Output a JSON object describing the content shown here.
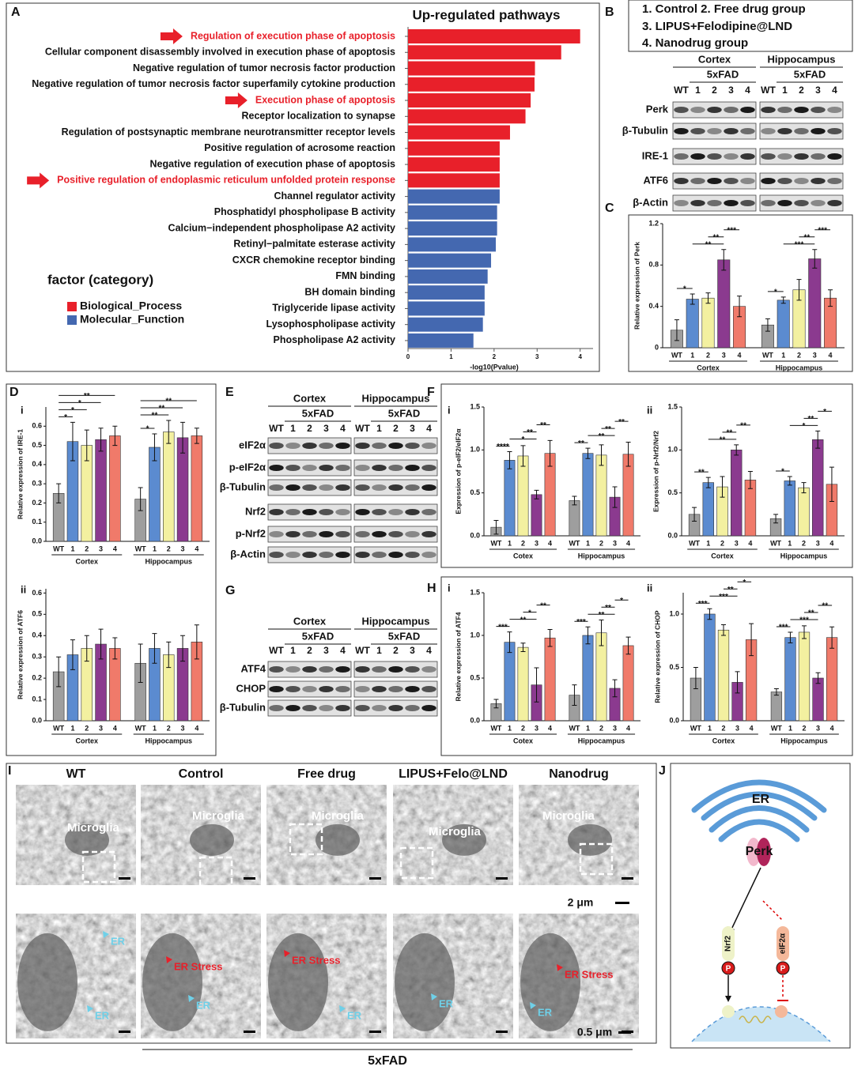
{
  "chart_data": [
    {
      "type": "barh",
      "title": "Up-regulated pathways",
      "xlabel": "-log10(Pvalue)",
      "legend_title": "factor (category)",
      "categories": [
        "Regulation of execution phase of apoptosis",
        "Cellular component disassembly involved in execution phase of apoptosis",
        "Negative regulation of tumor necrosis factor production",
        "Negative regulation of tumor necrosis factor superfamily cytokine production",
        "Execution phase of apoptosis",
        "Receptor localization to synapse",
        "Regulation of postsynaptic membrane neurotransmitter receptor levels",
        "Positive regulation of acrosome reaction",
        "Negative regulation of execution phase of apoptosis",
        "Positive regulation of endoplasmic reticulum unfolded protein response",
        "Channel regulator activity",
        "Phosphatidyl phospholipase B activity",
        "Calcium−independent phospholipase A2 activity",
        "Retinyl−palmitate esterase activity",
        "CXCR chemokine receptor binding",
        "FMN binding",
        "BH domain binding",
        "Triglyceride lipase activity",
        "Lysophospholipase activity",
        "Phospholipase A2 activity"
      ],
      "series": [
        {
          "name": "Biological_Process",
          "color": "#e8202a",
          "values": [
            4.0,
            3.56,
            2.95,
            2.94,
            2.85,
            2.73,
            2.37,
            2.13,
            2.13,
            2.13,
            null,
            null,
            null,
            null,
            null,
            null,
            null,
            null,
            null,
            null
          ]
        },
        {
          "name": "Molecular_Function",
          "color": "#4468b0",
          "values": [
            null,
            null,
            null,
            null,
            null,
            null,
            null,
            null,
            null,
            null,
            2.13,
            2.07,
            2.07,
            2.04,
            1.93,
            1.85,
            1.78,
            1.78,
            1.74,
            1.52
          ]
        }
      ],
      "highlighted": [
        0,
        4,
        9
      ],
      "highlight_color": "#e8202a",
      "xlim": [
        0,
        4.3
      ],
      "xticks": [
        0,
        1,
        2,
        3,
        4
      ]
    },
    {
      "type": "grouped_bar",
      "ylabel": "Relative expression of Perk",
      "categories": [
        "WT",
        "1",
        "2",
        "3",
        "4"
      ],
      "colors": [
        "#9e9e9e",
        "#5b8bd0",
        "#f3f0a0",
        "#8b3a8f",
        "#f07a6a"
      ],
      "ylim": [
        0,
        1.2
      ],
      "yticks": [
        0,
        0.4,
        0.8,
        1.2
      ],
      "groups": [
        {
          "name": "Cortex",
          "values": [
            0.17,
            0.47,
            0.48,
            0.85,
            0.4
          ],
          "errors": [
            0.1,
            0.05,
            0.05,
            0.1,
            0.1
          ]
        },
        {
          "name": "Hippocampus",
          "values": [
            0.22,
            0.46,
            0.56,
            0.86,
            0.48
          ],
          "errors": [
            0.06,
            0.03,
            0.1,
            0.09,
            0.08
          ]
        }
      ],
      "annotations": [
        {
          "text": "*",
          "group": 0,
          "from": 0,
          "to": 1
        },
        {
          "text": "**",
          "group": 0,
          "from": 1,
          "to": 3
        },
        {
          "text": "**",
          "group": 0,
          "from": 2,
          "to": 3
        },
        {
          "text": "***",
          "group": 0,
          "from": 3,
          "to": 4
        },
        {
          "text": "*",
          "group": 1,
          "from": 0,
          "to": 1
        },
        {
          "text": "***",
          "group": 1,
          "from": 1,
          "to": 3
        },
        {
          "text": "**",
          "group": 1,
          "from": 2,
          "to": 3
        },
        {
          "text": "***",
          "group": 1,
          "from": 3,
          "to": 4
        }
      ]
    },
    {
      "type": "grouped_bar",
      "label": "i",
      "ylabel": "Relative expression of IRE-1",
      "categories": [
        "WT",
        "1",
        "2",
        "3",
        "4"
      ],
      "colors": [
        "#9e9e9e",
        "#5b8bd0",
        "#f3f0a0",
        "#8b3a8f",
        "#f07a6a"
      ],
      "ylim": [
        0,
        0.7
      ],
      "yticks": [
        {
          "value": 0,
          "label": "0.0"
        },
        0.1,
        0.2,
        0.3,
        0.4,
        0.5,
        0.6
      ],
      "groups": [
        {
          "name": "Cortex",
          "values": [
            0.25,
            0.52,
            0.5,
            0.53,
            0.55
          ],
          "errors": [
            0.05,
            0.1,
            0.08,
            0.06,
            0.05
          ]
        },
        {
          "name": "Hippocampus",
          "values": [
            0.22,
            0.49,
            0.57,
            0.54,
            0.55
          ],
          "errors": [
            0.06,
            0.07,
            0.06,
            0.08,
            0.04
          ]
        }
      ],
      "annotations": [
        {
          "text": "*",
          "group": 0,
          "from": 0,
          "to": 1
        },
        {
          "text": "*",
          "group": 0,
          "from": 0,
          "to": 2
        },
        {
          "text": "*",
          "group": 0,
          "from": 0,
          "to": 3
        },
        {
          "text": "**",
          "group": 0,
          "from": 0,
          "to": 4
        },
        {
          "text": "*",
          "group": 1,
          "from": 0,
          "to": 1
        },
        {
          "text": "**",
          "group": 1,
          "from": 0,
          "to": 2
        },
        {
          "text": "**",
          "group": 1,
          "from": 0,
          "to": 3
        },
        {
          "text": "**",
          "group": 1,
          "from": 0,
          "to": 4
        }
      ]
    },
    {
      "type": "grouped_bar",
      "label": "ii",
      "ylabel": "Relative expression of ATF6",
      "categories": [
        "WT",
        "1",
        "2",
        "3",
        "4"
      ],
      "colors": [
        "#9e9e9e",
        "#5b8bd0",
        "#f3f0a0",
        "#8b3a8f",
        "#f07a6a"
      ],
      "ylim": [
        0,
        0.62
      ],
      "yticks": [
        {
          "value": 0,
          "label": "0.0"
        },
        0.1,
        0.2,
        0.3,
        0.4,
        0.5,
        0.6
      ],
      "groups": [
        {
          "name": "Cortex",
          "values": [
            0.23,
            0.31,
            0.34,
            0.36,
            0.34
          ],
          "errors": [
            0.07,
            0.07,
            0.06,
            0.07,
            0.05
          ]
        },
        {
          "name": "Hippocampus",
          "values": [
            0.27,
            0.34,
            0.31,
            0.34,
            0.37
          ],
          "errors": [
            0.09,
            0.07,
            0.06,
            0.06,
            0.08
          ]
        }
      ],
      "annotations": []
    },
    {
      "type": "grouped_bar",
      "label": "i",
      "ylabel": "Expression of p-eIF2/eIF2α",
      "categories": [
        "WT",
        "1",
        "2",
        "3",
        "4"
      ],
      "colors": [
        "#9e9e9e",
        "#5b8bd0",
        "#f3f0a0",
        "#8b3a8f",
        "#f07a6a"
      ],
      "ylim": [
        0,
        1.5
      ],
      "yticks": [
        {
          "value": 0,
          "label": "0.0"
        },
        0.5,
        {
          "value": 1,
          "label": "1.0"
        },
        1.5
      ],
      "groups": [
        {
          "name": "Cotex",
          "values": [
            0.1,
            0.88,
            0.93,
            0.48,
            0.96
          ],
          "errors": [
            0.08,
            0.1,
            0.12,
            0.05,
            0.15
          ]
        },
        {
          "name": "Hippocampus",
          "values": [
            0.41,
            0.96,
            0.94,
            0.45,
            0.95
          ],
          "errors": [
            0.05,
            0.06,
            0.12,
            0.12,
            0.14
          ]
        }
      ],
      "annotations": [
        {
          "text": "****",
          "group": 0,
          "from": 0,
          "to": 1
        },
        {
          "text": "*",
          "group": 0,
          "from": 1,
          "to": 3
        },
        {
          "text": "**",
          "group": 0,
          "from": 2,
          "to": 3
        },
        {
          "text": "**",
          "group": 0,
          "from": 3,
          "to": 4
        },
        {
          "text": "**",
          "group": 1,
          "from": 0,
          "to": 1
        },
        {
          "text": "**",
          "group": 1,
          "from": 1,
          "to": 3
        },
        {
          "text": "**",
          "group": 1,
          "from": 2,
          "to": 3
        },
        {
          "text": "**",
          "group": 1,
          "from": 3,
          "to": 4
        }
      ]
    },
    {
      "type": "grouped_bar",
      "label": "ii",
      "ylabel": "Expression of p-Nrf2/Nrf2",
      "categories": [
        "WT",
        "1",
        "2",
        "3",
        "4"
      ],
      "colors": [
        "#9e9e9e",
        "#5b8bd0",
        "#f3f0a0",
        "#8b3a8f",
        "#f07a6a"
      ],
      "ylim": [
        0,
        1.5
      ],
      "yticks": [
        {
          "value": 0,
          "label": "0.0"
        },
        0.5,
        {
          "value": 1,
          "label": "1.0"
        },
        1.5
      ],
      "groups": [
        {
          "name": "Cortex",
          "values": [
            0.25,
            0.62,
            0.57,
            1.0,
            0.65
          ],
          "errors": [
            0.08,
            0.06,
            0.12,
            0.06,
            0.1
          ]
        },
        {
          "name": "Hippocampus",
          "values": [
            0.2,
            0.64,
            0.56,
            1.12,
            0.6
          ],
          "errors": [
            0.05,
            0.05,
            0.06,
            0.1,
            0.2
          ]
        }
      ],
      "annotations": [
        {
          "text": "**",
          "group": 0,
          "from": 0,
          "to": 1
        },
        {
          "text": "**",
          "group": 0,
          "from": 1,
          "to": 3
        },
        {
          "text": "**",
          "group": 0,
          "from": 2,
          "to": 3
        },
        {
          "text": "**",
          "group": 0,
          "from": 3,
          "to": 4
        },
        {
          "text": "*",
          "group": 1,
          "from": 0,
          "to": 1
        },
        {
          "text": "*",
          "group": 1,
          "from": 1,
          "to": 3
        },
        {
          "text": "**",
          "group": 1,
          "from": 2,
          "to": 3
        },
        {
          "text": "*",
          "group": 1,
          "from": 3,
          "to": 4
        }
      ]
    },
    {
      "type": "grouped_bar",
      "label": "i",
      "ylabel": "Relative expression of ATF4",
      "categories": [
        "WT",
        "1",
        "2",
        "3",
        "4"
      ],
      "colors": [
        "#9e9e9e",
        "#5b8bd0",
        "#f3f0a0",
        "#8b3a8f",
        "#f07a6a"
      ],
      "ylim": [
        0,
        1.5
      ],
      "yticks": [
        {
          "value": 0,
          "label": "0.0"
        },
        0.5,
        {
          "value": 1,
          "label": "1.0"
        },
        1.5
      ],
      "groups": [
        {
          "name": "Cotex",
          "values": [
            0.2,
            0.92,
            0.86,
            0.42,
            0.97
          ],
          "errors": [
            0.05,
            0.12,
            0.05,
            0.2,
            0.1
          ]
        },
        {
          "name": "Hippocampus",
          "values": [
            0.3,
            1.0,
            1.03,
            0.38,
            0.88
          ],
          "errors": [
            0.12,
            0.1,
            0.15,
            0.1,
            0.1
          ]
        }
      ],
      "annotations": [
        {
          "text": "***",
          "group": 0,
          "from": 0,
          "to": 1
        },
        {
          "text": "**",
          "group": 0,
          "from": 1,
          "to": 3
        },
        {
          "text": "*",
          "group": 0,
          "from": 2,
          "to": 3
        },
        {
          "text": "**",
          "group": 0,
          "from": 3,
          "to": 4
        },
        {
          "text": "***",
          "group": 1,
          "from": 0,
          "to": 1
        },
        {
          "text": "**",
          "group": 1,
          "from": 1,
          "to": 3
        },
        {
          "text": "**",
          "group": 1,
          "from": 2,
          "to": 3
        },
        {
          "text": "*",
          "group": 1,
          "from": 3,
          "to": 4
        }
      ]
    },
    {
      "type": "grouped_bar",
      "label": "ii",
      "ylabel": "Relative expression of CHOP",
      "categories": [
        "WT",
        "1",
        "2",
        "3",
        "4"
      ],
      "colors": [
        "#9e9e9e",
        "#5b8bd0",
        "#f3f0a0",
        "#8b3a8f",
        "#f07a6a"
      ],
      "ylim": [
        0,
        1.2
      ],
      "yticks": [
        {
          "value": 0,
          "label": "0.0"
        },
        0.5,
        {
          "value": 1,
          "label": "1.0"
        }
      ],
      "groups": [
        {
          "name": "Cortex",
          "values": [
            0.4,
            1.0,
            0.85,
            0.36,
            0.76
          ],
          "errors": [
            0.1,
            0.05,
            0.05,
            0.1,
            0.15
          ]
        },
        {
          "name": "Hippocampus",
          "values": [
            0.27,
            0.78,
            0.83,
            0.4,
            0.78
          ],
          "errors": [
            0.03,
            0.05,
            0.06,
            0.05,
            0.1
          ]
        }
      ],
      "annotations": [
        {
          "text": "***",
          "group": 0,
          "from": 0,
          "to": 1
        },
        {
          "text": "***",
          "group": 0,
          "from": 1,
          "to": 3
        },
        {
          "text": "**",
          "group": 0,
          "from": 2,
          "to": 3
        },
        {
          "text": "*",
          "group": 0,
          "from": 3,
          "to": 4
        },
        {
          "text": "***",
          "group": 1,
          "from": 0,
          "to": 1
        },
        {
          "text": "***",
          "group": 1,
          "from": 1,
          "to": 3
        },
        {
          "text": "**",
          "group": 1,
          "from": 2,
          "to": 3
        },
        {
          "text": "**",
          "group": 1,
          "from": 3,
          "to": 4
        }
      ]
    }
  ],
  "figure": {
    "panel_labels": [
      "A",
      "B",
      "C",
      "D",
      "E",
      "F",
      "G",
      "H",
      "I",
      "J"
    ],
    "group_legend": [
      "1. Control  2. Free drug group",
      "3. LIPUS+Felodipine@LND",
      "4. Nanodrug group"
    ],
    "blots": [
      {
        "regions": [
          "Cortex",
          "Hippocampus"
        ],
        "model": "5xFAD",
        "lanes": [
          "WT",
          "1",
          "2",
          "3",
          "4"
        ],
        "rows": [
          "Perk",
          "β-Tubulin",
          "IRE-1",
          "ATF6",
          "β-Actin"
        ]
      },
      {
        "regions": [
          "Cortex",
          "Hippocampus"
        ],
        "model": "5xFAD",
        "lanes": [
          "WT",
          "1",
          "2",
          "3",
          "4"
        ],
        "rows": [
          "eIF2α",
          "p-eIF2α",
          "β-Tubulin",
          "Nrf2",
          "p-Nrf2",
          "β-Actin"
        ]
      },
      {
        "regions": [
          "Cortex",
          "Hippocampus"
        ],
        "model": "5xFAD",
        "lanes": [
          "WT",
          "1",
          "2",
          "3",
          "4"
        ],
        "rows": [
          "ATF4",
          "CHOP",
          "β-Tubulin"
        ]
      }
    ],
    "tem": {
      "columns": [
        "WT",
        "Control",
        "Free drug",
        "LIPUS+Felo@LND",
        "Nanodrug"
      ],
      "microglia": "Microglia",
      "er": "ER",
      "er_stress": "ER Stress",
      "scale_top": "2 μm",
      "scale_bottom": "0.5 μm",
      "group": "5xFAD"
    },
    "schematic": {
      "er": "ER",
      "perk": "Perk",
      "nrf2": "Nrf2",
      "eif2a": "eIF2α",
      "p": "P"
    }
  }
}
